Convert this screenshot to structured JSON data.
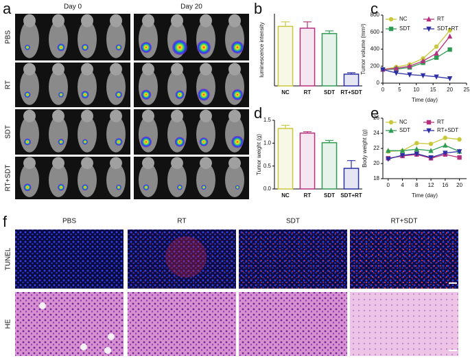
{
  "panel_labels": [
    "a",
    "b",
    "c",
    "d",
    "e",
    "f"
  ],
  "imaging": {
    "columns": [
      "Day 0",
      "Day 20"
    ],
    "rows": [
      "PBS",
      "RT",
      "SDT",
      "RT+SDT"
    ]
  },
  "histology": {
    "columns": [
      "PBS",
      "RT",
      "SDT",
      "RT+SDT"
    ],
    "rows": [
      "TUNEL",
      "HE"
    ]
  },
  "chart_data": [
    {
      "type": "bar",
      "y_label": "luminescence intensity",
      "categories": [
        "NC",
        "RT",
        "SDT",
        "RT+SDT"
      ],
      "values": [
        3.3,
        3.2,
        2.9,
        0.65
      ],
      "errors": [
        0.25,
        0.35,
        0.15,
        0.08
      ],
      "colors": [
        "#c9c83a",
        "#b5307e",
        "#2e9a52",
        "#2b2fa3"
      ],
      "ylim": [
        0,
        4
      ]
    },
    {
      "type": "line",
      "x_label": "Time (day)",
      "y_label": "Tumor volume (mm³)",
      "x": [
        0,
        4,
        8,
        12,
        16,
        20
      ],
      "series": [
        {
          "name": "NC",
          "color": "#c9c83a",
          "marker": "circle",
          "values": [
            160,
            190,
            220,
            290,
            430,
            620
          ]
        },
        {
          "name": "SDT",
          "color": "#2e9a52",
          "marker": "square",
          "values": [
            160,
            165,
            185,
            240,
            300,
            395
          ]
        },
        {
          "name": "RT",
          "color": "#b5307e",
          "marker": "triangle-up",
          "values": [
            160,
            175,
            200,
            260,
            350,
            550
          ]
        },
        {
          "name": "SDT+RT",
          "color": "#2b2fa3",
          "marker": "triangle-down",
          "values": [
            160,
            120,
            100,
            90,
            75,
            55
          ]
        }
      ],
      "xlim": [
        0,
        25
      ],
      "xticks": [
        0,
        5,
        10,
        15,
        20,
        25
      ],
      "ylim": [
        0,
        800
      ],
      "yticks": [
        0,
        200,
        400,
        600,
        800
      ]
    },
    {
      "type": "bar",
      "y_label": "Tumor weight (g)",
      "categories": [
        "NC",
        "RT",
        "SDT",
        "SDT+RT"
      ],
      "values": [
        1.32,
        1.22,
        1.01,
        0.45
      ],
      "errors": [
        0.07,
        0.03,
        0.05,
        0.17
      ],
      "colors": [
        "#c9c83a",
        "#b5307e",
        "#2e9a52",
        "#2b2fa3"
      ],
      "ylim": [
        0,
        1.5
      ],
      "yticks": [
        {
          "value": 0,
          "label": "0.0"
        },
        0.5,
        {
          "value": 1,
          "label": "1.0"
        },
        1.5
      ]
    },
    {
      "type": "line",
      "x_label": "Time (day)",
      "y_label": "Body weight (g)",
      "x": [
        0,
        4,
        8,
        12,
        16,
        20
      ],
      "series": [
        {
          "name": "NC",
          "color": "#c9c83a",
          "marker": "circle",
          "values": [
            21.6,
            21.7,
            22.7,
            22.6,
            23.4,
            23.2
          ]
        },
        {
          "name": "SDT",
          "color": "#2e9a52",
          "marker": "triangle-up",
          "values": [
            21.7,
            21.7,
            21.9,
            21.7,
            22.4,
            21.6
          ]
        },
        {
          "name": "RT",
          "color": "#b5307e",
          "marker": "square",
          "values": [
            20.7,
            21.0,
            21.2,
            20.7,
            21.2,
            20.8
          ]
        },
        {
          "name": "RT+SDT",
          "color": "#2b2fa3",
          "marker": "triangle-down",
          "values": [
            20.6,
            21.1,
            21.3,
            20.8,
            21.4,
            21.6
          ]
        }
      ],
      "xlim": [
        -1.5,
        22
      ],
      "xticks": [
        0,
        4,
        8,
        12,
        16,
        20
      ],
      "ylim": [
        18,
        26
      ],
      "yticks": [
        18,
        20,
        22,
        24,
        26
      ]
    }
  ]
}
